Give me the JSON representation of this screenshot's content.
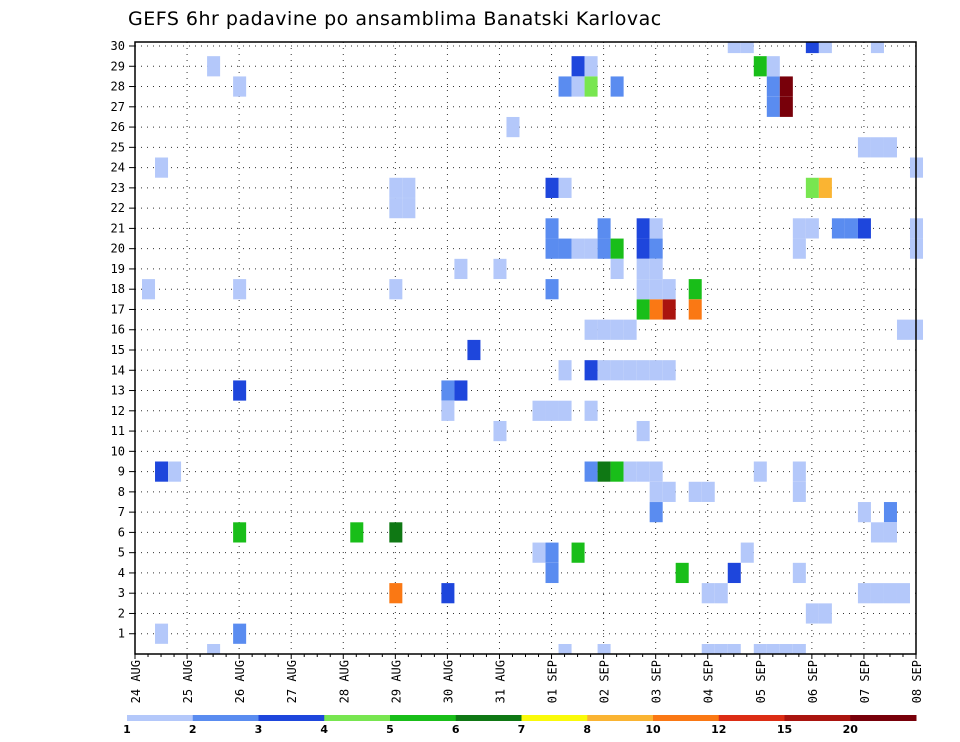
{
  "chart_data": {
    "type": "heatmap",
    "title": "GEFS 6hr padavine po ansamblima Banatski Karlovac",
    "xlabel": "",
    "ylabel": "",
    "x_start": "2023-08-24T00",
    "x_step_hours": 6,
    "x_ticks": [
      "24 AUG",
      "25 AUG",
      "26 AUG",
      "27 AUG",
      "28 AUG",
      "29 AUG",
      "30 AUG",
      "31 AUG",
      "01 SEP",
      "02 SEP",
      "03 SEP",
      "04 SEP",
      "05 SEP",
      "06 SEP",
      "07 SEP",
      "08 SEP"
    ],
    "y_ticks": [
      "1",
      "2",
      "3",
      "4",
      "5",
      "6",
      "7",
      "8",
      "9",
      "10",
      "11",
      "12",
      "13",
      "14",
      "15",
      "16",
      "17",
      "18",
      "19",
      "20",
      "21",
      "22",
      "23",
      "24",
      "25",
      "26",
      "27",
      "28",
      "29",
      "30"
    ],
    "grid": true,
    "colorbar": {
      "labels": [
        "1",
        "2",
        "3",
        "4",
        "5",
        "6",
        "7",
        "8",
        "10",
        "12",
        "15",
        "20"
      ],
      "colors": [
        "#b4c8fa",
        "#5a8cf0",
        "#1e46dc",
        "#78e650",
        "#19be19",
        "#0f7814",
        "#fafa0a",
        "#fab432",
        "#fa7814",
        "#dc2d14",
        "#aa140f",
        "#78000a"
      ]
    },
    "cells": [
      {
        "m": 30,
        "x": [
          46,
          47,
          52,
          53,
          57
        ]
      },
      {
        "m": 29,
        "x": [
          6,
          34,
          35,
          48,
          49
        ]
      },
      {
        "m": 28,
        "x": [
          8,
          33,
          34,
          35,
          37,
          49,
          50
        ]
      },
      {
        "m": 27,
        "x": [
          49,
          50
        ]
      },
      {
        "m": 26,
        "x": [
          29
        ]
      },
      {
        "m": 25,
        "x": [
          56,
          57,
          58
        ]
      },
      {
        "m": 24,
        "x": [
          2,
          60
        ]
      },
      {
        "m": 23,
        "x": [
          20,
          21,
          32,
          33,
          52,
          53
        ]
      },
      {
        "m": 22,
        "x": [
          20,
          21
        ]
      },
      {
        "m": 21,
        "x": [
          32,
          36,
          39,
          40,
          51,
          52,
          54,
          55,
          56,
          60
        ]
      },
      {
        "m": 20,
        "x": [
          32,
          33,
          34,
          35,
          36,
          37,
          39,
          40,
          51,
          60
        ]
      },
      {
        "m": 19,
        "x": [
          25,
          28,
          37,
          39,
          40
        ]
      },
      {
        "m": 18,
        "x": [
          1,
          8,
          20,
          32,
          39,
          40,
          41,
          43
        ]
      },
      {
        "m": 17,
        "x": [
          39,
          40,
          41,
          43
        ]
      },
      {
        "m": 16,
        "x": [
          35,
          36,
          37,
          38,
          59,
          60
        ]
      },
      {
        "m": 15,
        "x": [
          26
        ]
      },
      {
        "m": 14,
        "x": [
          33,
          35,
          36,
          37,
          38,
          39,
          40,
          41
        ]
      },
      {
        "m": 13,
        "x": [
          8,
          24,
          25
        ]
      },
      {
        "m": 12,
        "x": [
          24,
          31,
          32,
          33,
          35
        ]
      },
      {
        "m": 11,
        "x": [
          28,
          39
        ]
      },
      {
        "m": 10,
        "x": []
      },
      {
        "m": 9,
        "x": [
          2,
          3,
          35,
          36,
          37,
          38,
          39,
          40,
          48,
          51
        ]
      },
      {
        "m": 8,
        "x": [
          40,
          41,
          43,
          44,
          51
        ]
      },
      {
        "m": 7,
        "x": [
          40,
          56,
          58
        ]
      },
      {
        "m": 6,
        "x": [
          8,
          17,
          20,
          57,
          58
        ]
      },
      {
        "m": 5,
        "x": [
          31,
          32,
          34,
          47
        ]
      },
      {
        "m": 4,
        "x": [
          32,
          42,
          46,
          51
        ]
      },
      {
        "m": 3,
        "x": [
          20,
          24,
          44,
          45,
          56,
          57,
          58,
          59
        ]
      },
      {
        "m": 2,
        "x": [
          52,
          53
        ]
      },
      {
        "m": 1,
        "x": [
          2,
          8
        ]
      },
      {
        "m": 0,
        "x": [
          6,
          33,
          36,
          44,
          45,
          46,
          48,
          49,
          50,
          51
        ]
      }
    ],
    "cell_values": [
      [
        1,
        1,
        3,
        1,
        1
      ],
      [
        1,
        3,
        1,
        5,
        1
      ],
      [
        1,
        2,
        1,
        4,
        2,
        2,
        20
      ],
      [
        2,
        20
      ],
      [
        1
      ],
      [
        1,
        1,
        1
      ],
      [
        1,
        1
      ],
      [
        1,
        1,
        3,
        1,
        4,
        8
      ],
      [
        1,
        1
      ],
      [
        2,
        2,
        3,
        1,
        1,
        1,
        2,
        2,
        3,
        1
      ],
      [
        2,
        2,
        1,
        1,
        2,
        5,
        3,
        2,
        1,
        1
      ],
      [
        1,
        1,
        1,
        1,
        1,
        1,
        1,
        5
      ],
      [
        1,
        1,
        1,
        2,
        1,
        1,
        1,
        5
      ],
      [
        5,
        10,
        15,
        10,
        1,
        1
      ],
      [
        1
      ],
      [
        3,
        3,
        10,
        1,
        8,
        10,
        10,
        5
      ],
      [
        1,
        3,
        1
      ],
      [
        3,
        2,
        3,
        10,
        1
      ],
      [
        1
      ],
      [],
      [
        1,
        1,
        1,
        3,
        2,
        1,
        3,
        10,
        2,
        5
      ],
      [
        3,
        1,
        2,
        6,
        5
      ],
      [
        1,
        1,
        1
      ],
      [
        2,
        1,
        2,
        5,
        2
      ],
      [
        5,
        5,
        6,
        1
      ],
      [
        1,
        2,
        5,
        1
      ],
      [
        2,
        5,
        3,
        1,
        5,
        5,
        6,
        1
      ],
      [
        10,
        3
      ],
      [
        1,
        1
      ],
      [
        1,
        2,
        1,
        1,
        1,
        2,
        1,
        5,
        5,
        1
      ]
    ]
  }
}
